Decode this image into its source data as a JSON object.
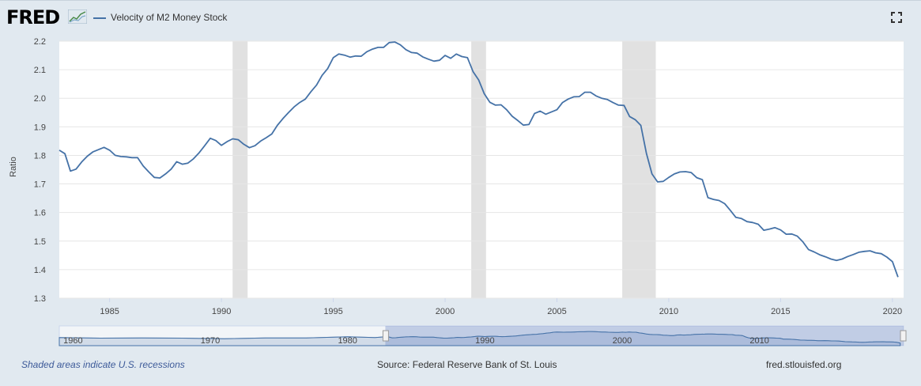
{
  "header": {
    "logo_text": "FRED",
    "legend_label": "Velocity of M2 Money Stock"
  },
  "colors": {
    "series": "#4572a7",
    "recession": "#e1e1e1",
    "background": "#e1e9f0",
    "navigator": "#6685c2"
  },
  "footer": {
    "recession_note": "Shaded areas indicate U.S. recessions",
    "source": "Source: Federal Reserve Bank of St. Louis",
    "site": "fred.stlouisfed.org"
  },
  "navigator": {
    "labels": [
      "1960",
      "1970",
      "1980",
      "1990",
      "2000",
      "2010"
    ]
  },
  "chart_data": {
    "type": "line",
    "title": "Velocity of M2 Money Stock",
    "xlabel": "",
    "ylabel": "Ratio",
    "xlim": [
      1982.75,
      2020.5
    ],
    "ylim": [
      1.3,
      2.2
    ],
    "yticks": [
      "1.3",
      "1.4",
      "1.5",
      "1.6",
      "1.7",
      "1.8",
      "1.9",
      "2.0",
      "2.1",
      "2.2"
    ],
    "xticks": [
      "1985",
      "1990",
      "1995",
      "2000",
      "2005",
      "2010",
      "2015",
      "2020"
    ],
    "recessions": [
      [
        1990.5,
        1991.17
      ],
      [
        2001.17,
        2001.83
      ],
      [
        2007.92,
        2009.42
      ]
    ],
    "series": [
      {
        "name": "Velocity of M2 Money Stock",
        "x": [
          1982.75,
          1983.0,
          1983.25,
          1983.5,
          1983.75,
          1984.0,
          1984.25,
          1984.5,
          1984.75,
          1985.0,
          1985.25,
          1985.5,
          1985.75,
          1986.0,
          1986.25,
          1986.5,
          1986.75,
          1987.0,
          1987.25,
          1987.5,
          1987.75,
          1988.0,
          1988.25,
          1988.5,
          1988.75,
          1989.0,
          1989.25,
          1989.5,
          1989.75,
          1990.0,
          1990.25,
          1990.5,
          1990.75,
          1991.0,
          1991.25,
          1991.5,
          1991.75,
          1992.0,
          1992.25,
          1992.5,
          1992.75,
          1993.0,
          1993.25,
          1993.5,
          1993.75,
          1994.0,
          1994.25,
          1994.5,
          1994.75,
          1995.0,
          1995.25,
          1995.5,
          1995.75,
          1996.0,
          1996.25,
          1996.5,
          1996.75,
          1997.0,
          1997.25,
          1997.5,
          1997.75,
          1998.0,
          1998.25,
          1998.5,
          1998.75,
          1999.0,
          1999.25,
          1999.5,
          1999.75,
          2000.0,
          2000.25,
          2000.5,
          2000.75,
          2001.0,
          2001.25,
          2001.5,
          2001.75,
          2002.0,
          2002.25,
          2002.5,
          2002.75,
          2003.0,
          2003.25,
          2003.5,
          2003.75,
          2004.0,
          2004.25,
          2004.5,
          2004.75,
          2005.0,
          2005.25,
          2005.5,
          2005.75,
          2006.0,
          2006.25,
          2006.5,
          2006.75,
          2007.0,
          2007.25,
          2007.5,
          2007.75,
          2008.0,
          2008.25,
          2008.5,
          2008.75,
          2009.0,
          2009.25,
          2009.5,
          2009.75,
          2010.0,
          2010.25,
          2010.5,
          2010.75,
          2011.0,
          2011.25,
          2011.5,
          2011.75,
          2012.0,
          2012.25,
          2012.5,
          2012.75,
          2013.0,
          2013.25,
          2013.5,
          2013.75,
          2014.0,
          2014.25,
          2014.5,
          2014.75,
          2015.0,
          2015.25,
          2015.5,
          2015.75,
          2016.0,
          2016.25,
          2016.5,
          2016.75,
          2017.0,
          2017.25,
          2017.5,
          2017.75,
          2018.0,
          2018.25,
          2018.5,
          2018.75,
          2019.0,
          2019.25,
          2019.5,
          2019.75,
          2020.0,
          2020.25
        ],
        "values": [
          1.818,
          1.806,
          1.745,
          1.752,
          1.777,
          1.797,
          1.812,
          1.82,
          1.828,
          1.818,
          1.8,
          1.796,
          1.795,
          1.792,
          1.792,
          1.763,
          1.742,
          1.723,
          1.721,
          1.735,
          1.752,
          1.778,
          1.769,
          1.773,
          1.788,
          1.809,
          1.834,
          1.86,
          1.852,
          1.835,
          1.848,
          1.858,
          1.855,
          1.839,
          1.827,
          1.834,
          1.85,
          1.862,
          1.875,
          1.905,
          1.929,
          1.95,
          1.97,
          1.985,
          1.997,
          2.023,
          2.046,
          2.08,
          2.104,
          2.142,
          2.155,
          2.151,
          2.144,
          2.148,
          2.147,
          2.163,
          2.172,
          2.178,
          2.178,
          2.195,
          2.197,
          2.187,
          2.17,
          2.16,
          2.158,
          2.145,
          2.137,
          2.13,
          2.133,
          2.15,
          2.14,
          2.155,
          2.146,
          2.142,
          2.093,
          2.064,
          2.016,
          1.986,
          1.976,
          1.977,
          1.96,
          1.937,
          1.922,
          1.906,
          1.908,
          1.947,
          1.955,
          1.944,
          1.952,
          1.96,
          1.985,
          1.997,
          2.005,
          2.006,
          2.021,
          2.021,
          2.008,
          2.0,
          1.996,
          1.985,
          1.976,
          1.975,
          1.936,
          1.925,
          1.905,
          1.808,
          1.735,
          1.707,
          1.709,
          1.723,
          1.735,
          1.742,
          1.743,
          1.74,
          1.722,
          1.715,
          1.652,
          1.646,
          1.642,
          1.631,
          1.608,
          1.583,
          1.579,
          1.568,
          1.565,
          1.559,
          1.538,
          1.542,
          1.547,
          1.539,
          1.524,
          1.525,
          1.517,
          1.497,
          1.47,
          1.462,
          1.452,
          1.445,
          1.437,
          1.432,
          1.437,
          1.446,
          1.453,
          1.461,
          1.464,
          1.466,
          1.459,
          1.456,
          1.444,
          1.428,
          1.374
        ]
      }
    ]
  }
}
